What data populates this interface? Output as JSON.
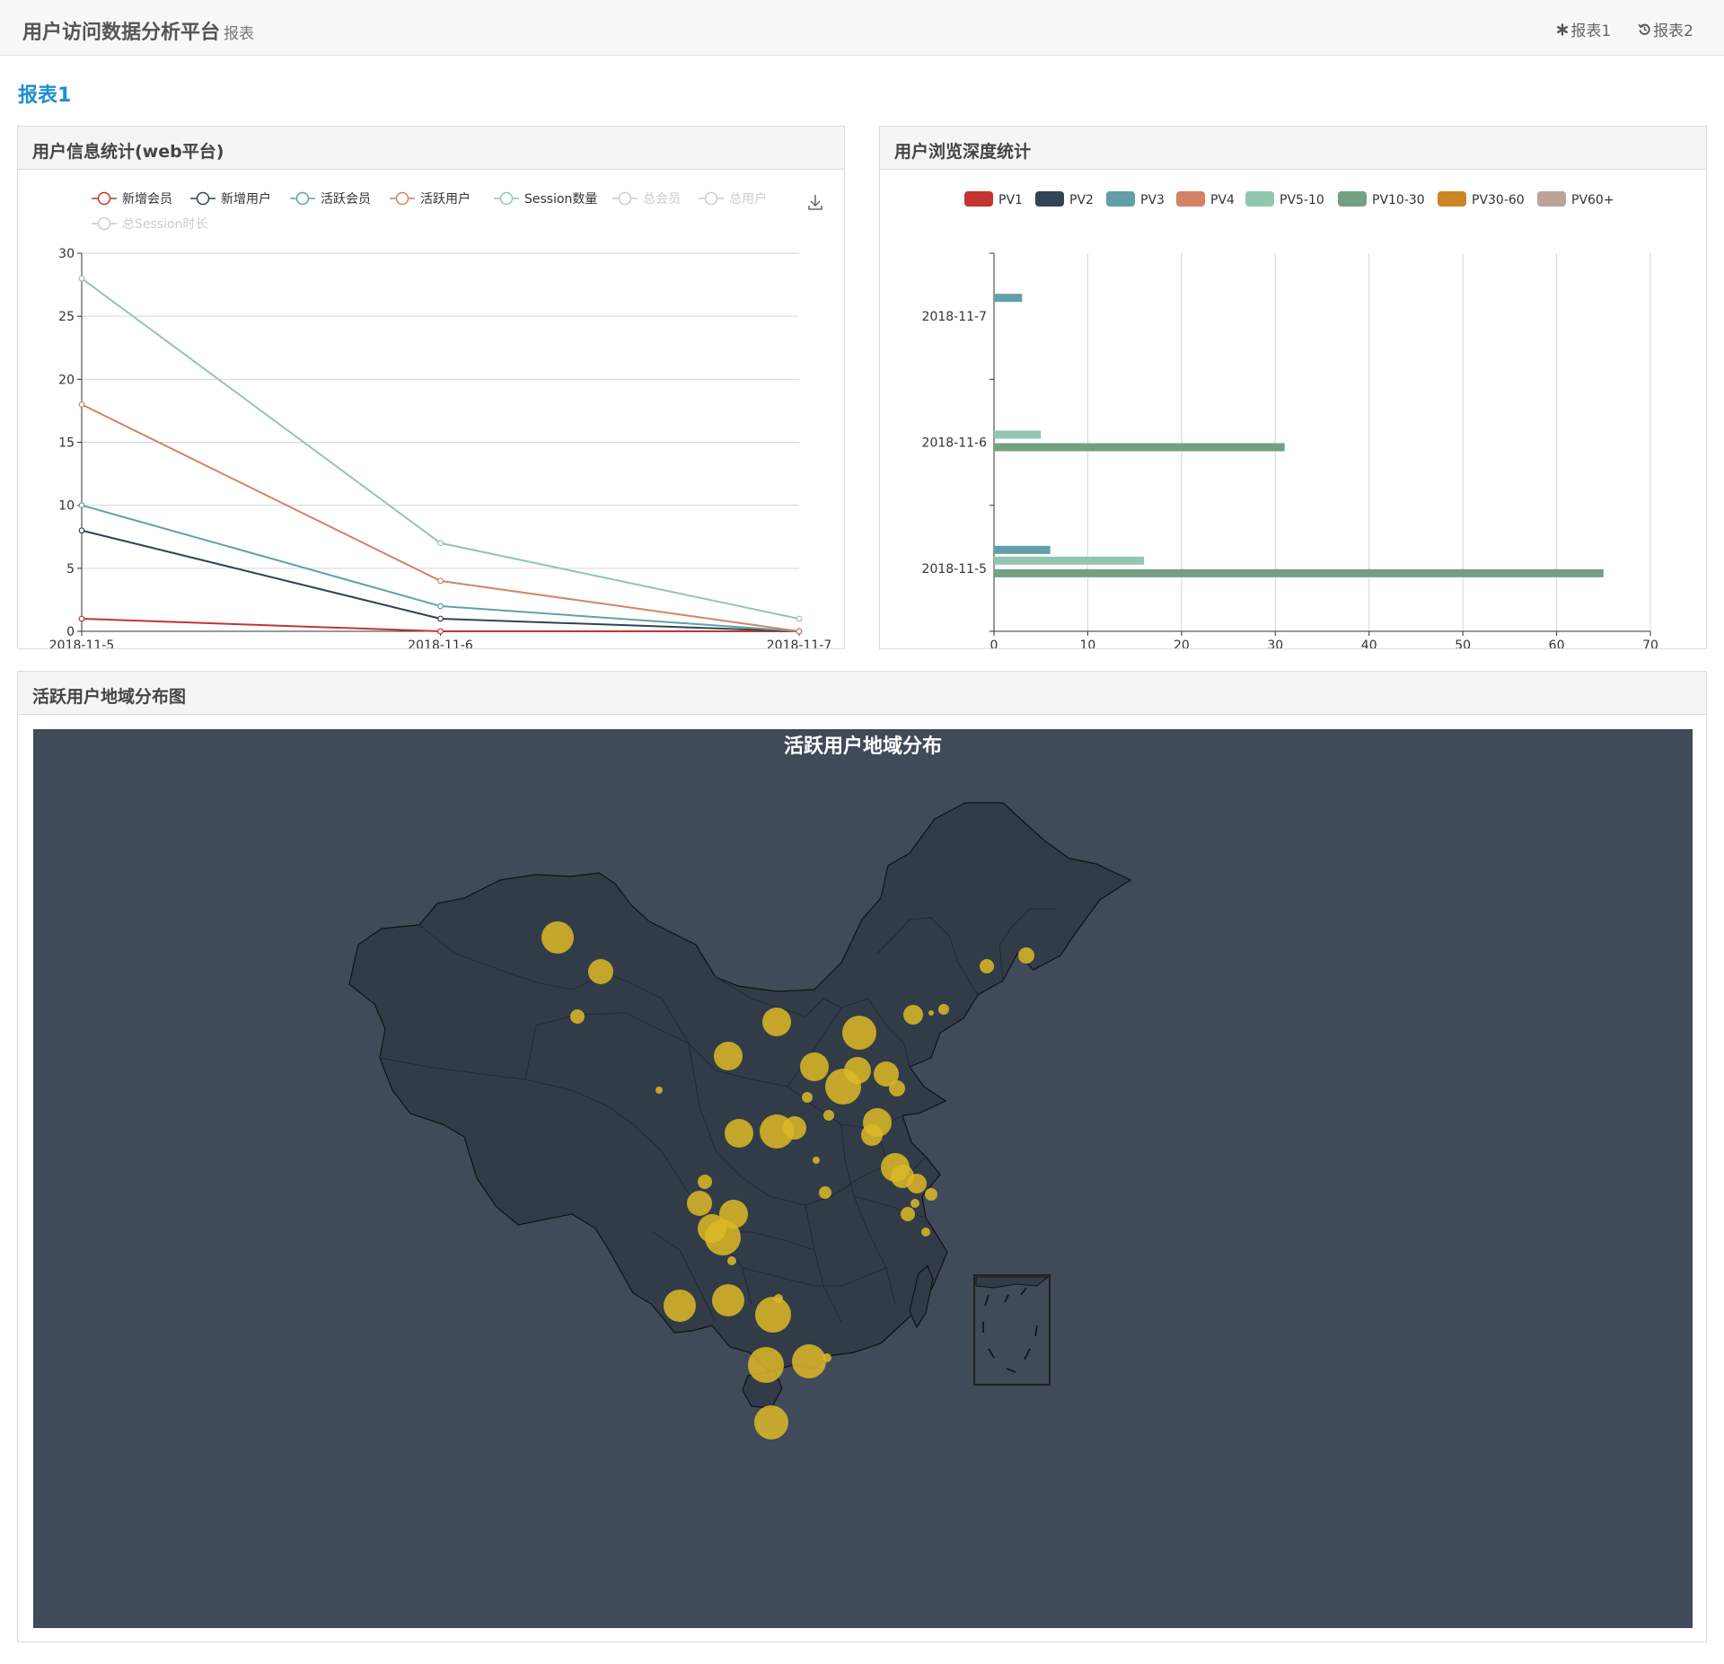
{
  "header": {
    "title": "用户访问数据分析平台",
    "subtitle": "报表",
    "nav": [
      {
        "icon": "asterisk-icon",
        "label": "报表1"
      },
      {
        "icon": "history-icon",
        "label": "报表2"
      }
    ]
  },
  "page": {
    "heading": "报表1"
  },
  "panels": {
    "user_stats": "用户信息统计(web平台)",
    "depth_stats": "用户浏览深度统计",
    "region": "活跃用户地域分布图"
  },
  "map": {
    "title": "活跃用户地域分布",
    "colors": {
      "background": "#404a59",
      "land": "#323c48",
      "border": "#111111",
      "bubble": "#ddb926"
    }
  },
  "chart_data": [
    {
      "type": "line",
      "x": [
        "2018-11-5",
        "2018-11-6",
        "2018-11-7"
      ],
      "ylim": [
        0,
        30
      ],
      "yticks": [
        0,
        5,
        10,
        15,
        20,
        25,
        30
      ],
      "legend": [
        "新增会员",
        "新增用户",
        "活跃会员",
        "活跃用户",
        "Session数量",
        "总会员",
        "总用户",
        "总Session时长"
      ],
      "legend_disabled": [
        "总会员",
        "总用户",
        "总Session时长"
      ],
      "series": [
        {
          "name": "新增会员",
          "color": "#c23531",
          "values": [
            1,
            0,
            0
          ]
        },
        {
          "name": "新增用户",
          "color": "#2f4554",
          "values": [
            8,
            1,
            0
          ]
        },
        {
          "name": "活跃会员",
          "color": "#61a0a8",
          "values": [
            10,
            2,
            0
          ]
        },
        {
          "name": "活跃用户",
          "color": "#d48265",
          "values": [
            18,
            4,
            0
          ]
        },
        {
          "name": "Session数量",
          "color": "#91c7ae",
          "values": [
            28,
            7,
            1
          ]
        }
      ]
    },
    {
      "type": "bar",
      "orientation": "horizontal",
      "categories": [
        "2018-11-5",
        "2018-11-6",
        "2018-11-7"
      ],
      "xlim": [
        0,
        70
      ],
      "xticks": [
        0,
        10,
        20,
        30,
        40,
        50,
        60,
        70
      ],
      "legend": [
        {
          "name": "PV1",
          "color": "#c23531"
        },
        {
          "name": "PV2",
          "color": "#2f4554"
        },
        {
          "name": "PV3",
          "color": "#61a0a8"
        },
        {
          "name": "PV4",
          "color": "#d48265"
        },
        {
          "name": "PV5-10",
          "color": "#91c7ae"
        },
        {
          "name": "PV10-30",
          "color": "#749f83"
        },
        {
          "name": "PV30-60",
          "color": "#ca8622"
        },
        {
          "name": "PV60+",
          "color": "#bda29a"
        }
      ],
      "series": [
        {
          "name": "PV3",
          "color": "#61a0a8",
          "values": [
            6,
            0,
            3
          ]
        },
        {
          "name": "PV5-10",
          "color": "#91c7ae",
          "values": [
            16,
            5,
            0
          ]
        },
        {
          "name": "PV10-30",
          "color": "#749f83",
          "values": [
            65,
            31,
            0
          ]
        }
      ]
    }
  ]
}
